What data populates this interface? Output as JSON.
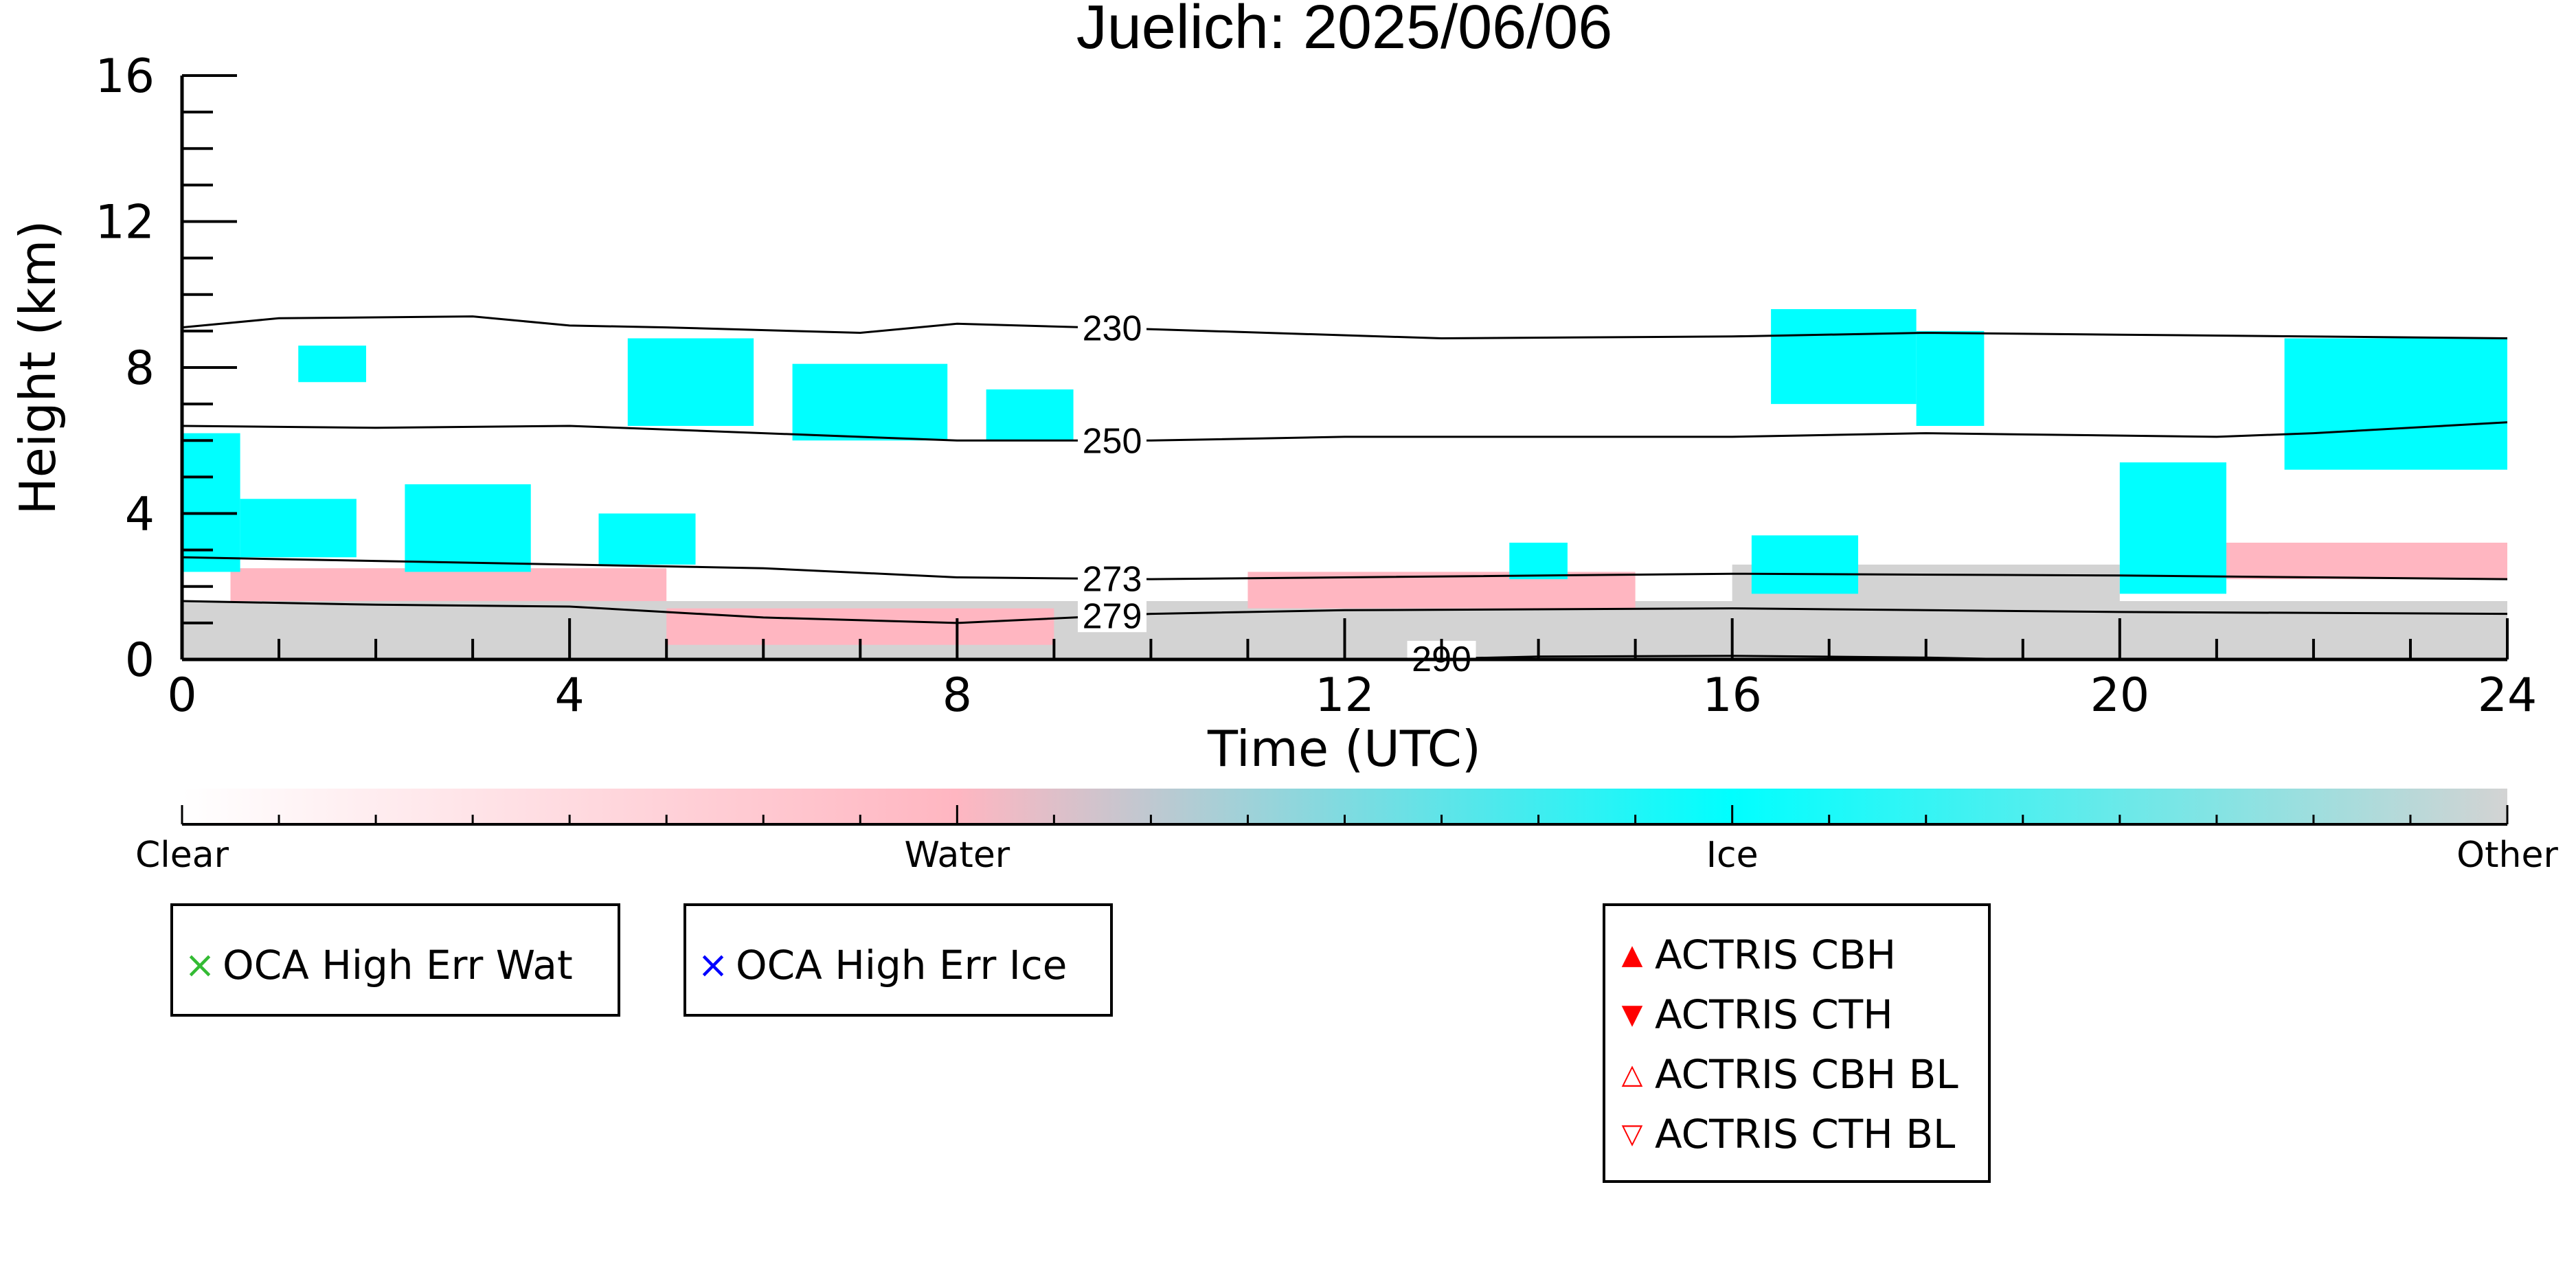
{
  "chart_data": {
    "type": "heatmap",
    "title": "Juelich: 2025/06/06",
    "xlabel": "Time (UTC)",
    "ylabel": "Height (km)",
    "xlim": [
      0,
      24
    ],
    "ylim": [
      0,
      16
    ],
    "x_ticks": [
      0,
      4,
      8,
      12,
      16,
      20,
      24
    ],
    "y_ticks": [
      0,
      4,
      8,
      12,
      16
    ],
    "classes": [
      {
        "name": "Clear",
        "color": "#ffffff"
      },
      {
        "name": "Water",
        "color": "#ffb6c1"
      },
      {
        "name": "Ice",
        "color": "#00ffff"
      },
      {
        "name": "Other",
        "color": "#d3d3d3"
      }
    ],
    "cloud_regions": [
      {
        "class": "Other",
        "x0": 0,
        "x1": 24,
        "y0": 0,
        "y1": 1.6
      },
      {
        "class": "Water",
        "x0": 0.5,
        "x1": 5,
        "y0": 1.6,
        "y1": 2.5
      },
      {
        "class": "Water",
        "x0": 5,
        "x1": 9,
        "y0": 0.4,
        "y1": 1.4
      },
      {
        "class": "Water",
        "x0": 11,
        "x1": 15,
        "y0": 1.4,
        "y1": 2.4
      },
      {
        "class": "Other",
        "x0": 16,
        "x1": 20,
        "y0": 1.6,
        "y1": 2.6
      },
      {
        "class": "Water",
        "x0": 20.5,
        "x1": 24,
        "y0": 2.2,
        "y1": 3.2
      },
      {
        "class": "Ice",
        "x0": 0,
        "x1": 0.6,
        "y0": 2.4,
        "y1": 6.2
      },
      {
        "class": "Ice",
        "x0": 0.6,
        "x1": 1.8,
        "y0": 2.8,
        "y1": 4.4
      },
      {
        "class": "Ice",
        "x0": 2.3,
        "x1": 3.6,
        "y0": 2.4,
        "y1": 4.8
      },
      {
        "class": "Ice",
        "x0": 4.3,
        "x1": 5.3,
        "y0": 2.6,
        "y1": 4.0
      },
      {
        "class": "Ice",
        "x0": 1.2,
        "x1": 1.9,
        "y0": 7.6,
        "y1": 8.6
      },
      {
        "class": "Ice",
        "x0": 4.6,
        "x1": 5.9,
        "y0": 6.4,
        "y1": 8.8
      },
      {
        "class": "Ice",
        "x0": 6.3,
        "x1": 7.9,
        "y0": 6.0,
        "y1": 8.1
      },
      {
        "class": "Ice",
        "x0": 8.3,
        "x1": 9.2,
        "y0": 6.0,
        "y1": 7.4
      },
      {
        "class": "Ice",
        "x0": 16.4,
        "x1": 17.9,
        "y0": 7.0,
        "y1": 9.6
      },
      {
        "class": "Ice",
        "x0": 17.9,
        "x1": 18.6,
        "y0": 6.4,
        "y1": 9.0
      },
      {
        "class": "Ice",
        "x0": 16.2,
        "x1": 17.3,
        "y0": 1.8,
        "y1": 3.4
      },
      {
        "class": "Ice",
        "x0": 20.0,
        "x1": 21.1,
        "y0": 1.8,
        "y1": 5.4
      },
      {
        "class": "Ice",
        "x0": 21.7,
        "x1": 24,
        "y0": 5.2,
        "y1": 8.8
      },
      {
        "class": "Ice",
        "x0": 13.7,
        "x1": 14.3,
        "y0": 2.2,
        "y1": 3.2
      }
    ],
    "contours": [
      {
        "label": "230",
        "label_x": 9.6,
        "points": [
          [
            0,
            9.1
          ],
          [
            1,
            9.35
          ],
          [
            3,
            9.4
          ],
          [
            4,
            9.15
          ],
          [
            5,
            9.1
          ],
          [
            7,
            8.95
          ],
          [
            8,
            9.2
          ],
          [
            10,
            9.05
          ],
          [
            13,
            8.8
          ],
          [
            16,
            8.85
          ],
          [
            18,
            8.95
          ],
          [
            20,
            8.9
          ],
          [
            24,
            8.8
          ]
        ]
      },
      {
        "label": "250",
        "label_x": 9.6,
        "points": [
          [
            0,
            6.4
          ],
          [
            2,
            6.35
          ],
          [
            4,
            6.4
          ],
          [
            6,
            6.2
          ],
          [
            8,
            6.0
          ],
          [
            10,
            6.0
          ],
          [
            12,
            6.1
          ],
          [
            16,
            6.1
          ],
          [
            18,
            6.2
          ],
          [
            21,
            6.1
          ],
          [
            22,
            6.2
          ],
          [
            24,
            6.5
          ]
        ]
      },
      {
        "label": "273",
        "label_x": 9.6,
        "points": [
          [
            0,
            2.8
          ],
          [
            2,
            2.7
          ],
          [
            4,
            2.6
          ],
          [
            6,
            2.5
          ],
          [
            8,
            2.25
          ],
          [
            10,
            2.2
          ],
          [
            12,
            2.25
          ],
          [
            16,
            2.35
          ],
          [
            20,
            2.3
          ],
          [
            24,
            2.2
          ]
        ]
      },
      {
        "label": "279",
        "label_x": 9.6,
        "points": [
          [
            0,
            1.6
          ],
          [
            2,
            1.5
          ],
          [
            4,
            1.45
          ],
          [
            6,
            1.15
          ],
          [
            8,
            1.0
          ],
          [
            10,
            1.25
          ],
          [
            12,
            1.35
          ],
          [
            16,
            1.4
          ],
          [
            20,
            1.3
          ],
          [
            24,
            1.25
          ]
        ]
      },
      {
        "label": "290",
        "label_x": 13.0,
        "points": [
          [
            12,
            0.0
          ],
          [
            13,
            0.02
          ],
          [
            14,
            0.08
          ],
          [
            16,
            0.1
          ],
          [
            18,
            0.05
          ],
          [
            19,
            0.0
          ]
        ]
      }
    ],
    "colorbar": {
      "ticks": [
        "Clear",
        "Water",
        "Ice",
        "Other"
      ],
      "colors": [
        "#ffffff",
        "#ffb6c1",
        "#00ffff",
        "#d3d3d3"
      ]
    },
    "legends": [
      {
        "id": "oca-wat",
        "items": [
          {
            "label": "OCA High Err Wat",
            "symbol": "×",
            "color": "#33bb33"
          }
        ]
      },
      {
        "id": "oca-ice",
        "items": [
          {
            "label": "OCA High Err Ice",
            "symbol": "×",
            "color": "#0000ff"
          }
        ]
      },
      {
        "id": "actris",
        "items": [
          {
            "label": "ACTRIS CBH",
            "symbol": "▲",
            "color": "#ff0000"
          },
          {
            "label": "ACTRIS CTH",
            "symbol": "▼",
            "color": "#ff0000"
          },
          {
            "label": "ACTRIS CBH BL",
            "symbol": "△",
            "color": "#ff0000"
          },
          {
            "label": "ACTRIS CTH BL",
            "symbol": "▽",
            "color": "#ff0000"
          }
        ]
      }
    ]
  }
}
